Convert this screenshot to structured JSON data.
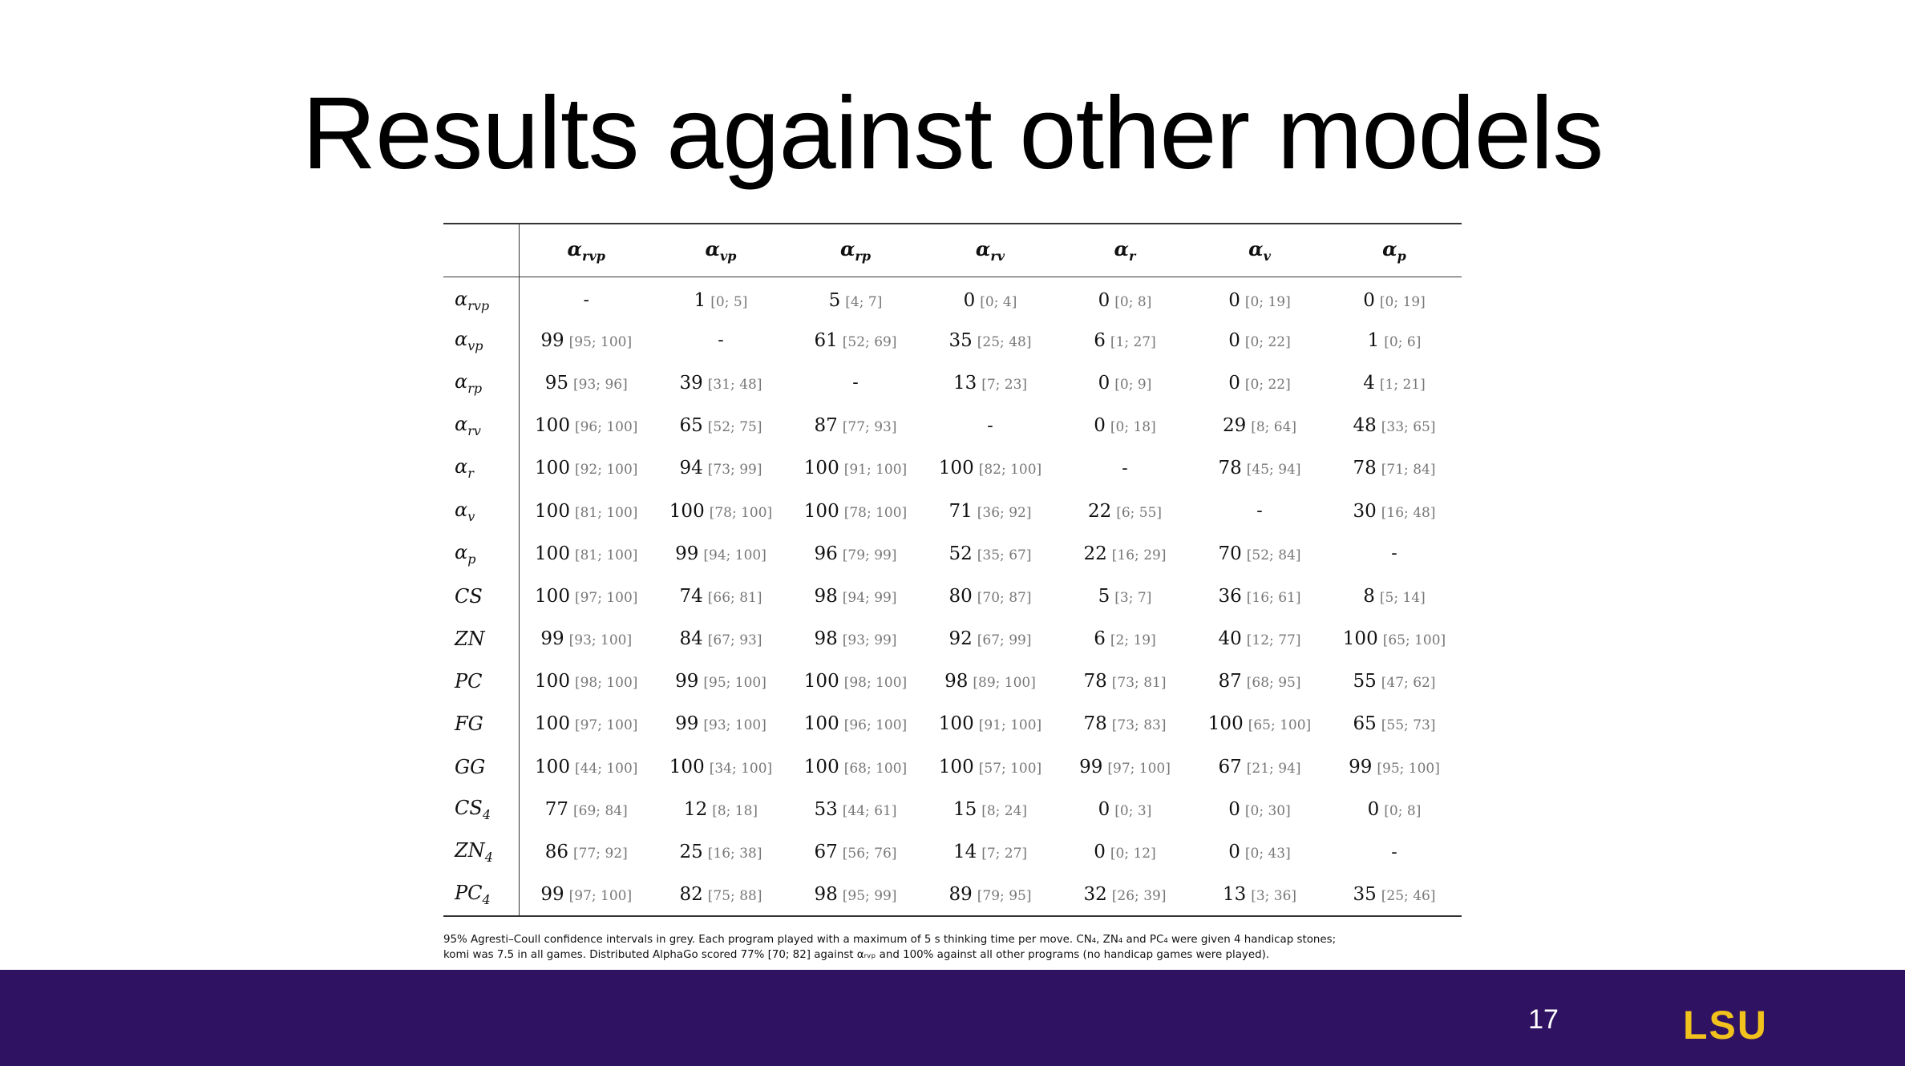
{
  "slide": {
    "title": "Results against other models",
    "page_number": "17",
    "logo_text": "LSU",
    "colors": {
      "footer_bar": "#301262",
      "logo_gold": "#F1C21C",
      "ci_grey": "#777777"
    }
  },
  "table": {
    "columns": [
      {
        "base": "α",
        "sub": "rvp"
      },
      {
        "base": "α",
        "sub": "vp"
      },
      {
        "base": "α",
        "sub": "rp"
      },
      {
        "base": "α",
        "sub": "rv"
      },
      {
        "base": "α",
        "sub": "r"
      },
      {
        "base": "α",
        "sub": "v"
      },
      {
        "base": "α",
        "sub": "p"
      }
    ],
    "rows": [
      {
        "label": {
          "base": "α",
          "sub": "rvp"
        },
        "cells": [
          {
            "v": "-",
            "ci": ""
          },
          {
            "v": "1",
            "ci": "[0; 5]"
          },
          {
            "v": "5",
            "ci": "[4; 7]"
          },
          {
            "v": "0",
            "ci": "[0; 4]"
          },
          {
            "v": "0",
            "ci": "[0; 8]"
          },
          {
            "v": "0",
            "ci": "[0; 19]"
          },
          {
            "v": "0",
            "ci": "[0; 19]"
          }
        ]
      },
      {
        "label": {
          "base": "α",
          "sub": "vp"
        },
        "cells": [
          {
            "v": "99",
            "ci": "[95; 100]"
          },
          {
            "v": "-",
            "ci": ""
          },
          {
            "v": "61",
            "ci": "[52; 69]"
          },
          {
            "v": "35",
            "ci": "[25; 48]"
          },
          {
            "v": "6",
            "ci": "[1; 27]"
          },
          {
            "v": "0",
            "ci": "[0; 22]"
          },
          {
            "v": "1",
            "ci": "[0; 6]"
          }
        ]
      },
      {
        "label": {
          "base": "α",
          "sub": "rp"
        },
        "cells": [
          {
            "v": "95",
            "ci": "[93; 96]"
          },
          {
            "v": "39",
            "ci": "[31; 48]"
          },
          {
            "v": "-",
            "ci": ""
          },
          {
            "v": "13",
            "ci": "[7; 23]"
          },
          {
            "v": "0",
            "ci": "[0; 9]"
          },
          {
            "v": "0",
            "ci": "[0; 22]"
          },
          {
            "v": "4",
            "ci": "[1; 21]"
          }
        ]
      },
      {
        "label": {
          "base": "α",
          "sub": "rv"
        },
        "cells": [
          {
            "v": "100",
            "ci": "[96; 100]"
          },
          {
            "v": "65",
            "ci": "[52; 75]"
          },
          {
            "v": "87",
            "ci": "[77; 93]"
          },
          {
            "v": "-",
            "ci": ""
          },
          {
            "v": "0",
            "ci": "[0; 18]"
          },
          {
            "v": "29",
            "ci": "[8; 64]"
          },
          {
            "v": "48",
            "ci": "[33; 65]"
          }
        ]
      },
      {
        "label": {
          "base": "α",
          "sub": "r"
        },
        "cells": [
          {
            "v": "100",
            "ci": "[92; 100]"
          },
          {
            "v": "94",
            "ci": "[73; 99]"
          },
          {
            "v": "100",
            "ci": "[91; 100]"
          },
          {
            "v": "100",
            "ci": "[82; 100]"
          },
          {
            "v": "-",
            "ci": ""
          },
          {
            "v": "78",
            "ci": "[45; 94]"
          },
          {
            "v": "78",
            "ci": "[71; 84]"
          }
        ]
      },
      {
        "label": {
          "base": "α",
          "sub": "v"
        },
        "cells": [
          {
            "v": "100",
            "ci": "[81; 100]"
          },
          {
            "v": "100",
            "ci": "[78; 100]"
          },
          {
            "v": "100",
            "ci": "[78; 100]"
          },
          {
            "v": "71",
            "ci": "[36; 92]"
          },
          {
            "v": "22",
            "ci": "[6; 55]"
          },
          {
            "v": "-",
            "ci": ""
          },
          {
            "v": "30",
            "ci": "[16; 48]"
          }
        ]
      },
      {
        "label": {
          "base": "α",
          "sub": "p"
        },
        "cells": [
          {
            "v": "100",
            "ci": "[81; 100]"
          },
          {
            "v": "99",
            "ci": "[94; 100]"
          },
          {
            "v": "96",
            "ci": "[79; 99]"
          },
          {
            "v": "52",
            "ci": "[35; 67]"
          },
          {
            "v": "22",
            "ci": "[16; 29]"
          },
          {
            "v": "70",
            "ci": "[52; 84]"
          },
          {
            "v": "-",
            "ci": ""
          }
        ]
      },
      {
        "label": {
          "base": "CS",
          "sub": ""
        },
        "cells": [
          {
            "v": "100",
            "ci": "[97; 100]"
          },
          {
            "v": "74",
            "ci": "[66; 81]"
          },
          {
            "v": "98",
            "ci": "[94; 99]"
          },
          {
            "v": "80",
            "ci": "[70; 87]"
          },
          {
            "v": "5",
            "ci": "[3; 7]"
          },
          {
            "v": "36",
            "ci": "[16; 61]"
          },
          {
            "v": "8",
            "ci": "[5; 14]"
          }
        ]
      },
      {
        "label": {
          "base": "ZN",
          "sub": ""
        },
        "cells": [
          {
            "v": "99",
            "ci": "[93; 100]"
          },
          {
            "v": "84",
            "ci": "[67; 93]"
          },
          {
            "v": "98",
            "ci": "[93; 99]"
          },
          {
            "v": "92",
            "ci": "[67; 99]"
          },
          {
            "v": "6",
            "ci": "[2; 19]"
          },
          {
            "v": "40",
            "ci": "[12; 77]"
          },
          {
            "v": "100",
            "ci": "[65; 100]"
          }
        ]
      },
      {
        "label": {
          "base": "PC",
          "sub": ""
        },
        "cells": [
          {
            "v": "100",
            "ci": "[98; 100]"
          },
          {
            "v": "99",
            "ci": "[95; 100]"
          },
          {
            "v": "100",
            "ci": "[98; 100]"
          },
          {
            "v": "98",
            "ci": "[89; 100]"
          },
          {
            "v": "78",
            "ci": "[73; 81]"
          },
          {
            "v": "87",
            "ci": "[68; 95]"
          },
          {
            "v": "55",
            "ci": "[47; 62]"
          }
        ]
      },
      {
        "label": {
          "base": "FG",
          "sub": ""
        },
        "cells": [
          {
            "v": "100",
            "ci": "[97; 100]"
          },
          {
            "v": "99",
            "ci": "[93; 100]"
          },
          {
            "v": "100",
            "ci": "[96; 100]"
          },
          {
            "v": "100",
            "ci": "[91; 100]"
          },
          {
            "v": "78",
            "ci": "[73; 83]"
          },
          {
            "v": "100",
            "ci": "[65; 100]"
          },
          {
            "v": "65",
            "ci": "[55; 73]"
          }
        ]
      },
      {
        "label": {
          "base": "GG",
          "sub": ""
        },
        "cells": [
          {
            "v": "100",
            "ci": "[44; 100]"
          },
          {
            "v": "100",
            "ci": "[34; 100]"
          },
          {
            "v": "100",
            "ci": "[68; 100]"
          },
          {
            "v": "100",
            "ci": "[57; 100]"
          },
          {
            "v": "99",
            "ci": "[97; 100]"
          },
          {
            "v": "67",
            "ci": "[21; 94]"
          },
          {
            "v": "99",
            "ci": "[95; 100]"
          }
        ]
      },
      {
        "label": {
          "base": "CS",
          "sub": "4"
        },
        "cells": [
          {
            "v": "77",
            "ci": "[69; 84]"
          },
          {
            "v": "12",
            "ci": "[8; 18]"
          },
          {
            "v": "53",
            "ci": "[44; 61]"
          },
          {
            "v": "15",
            "ci": "[8; 24]"
          },
          {
            "v": "0",
            "ci": "[0; 3]"
          },
          {
            "v": "0",
            "ci": "[0; 30]"
          },
          {
            "v": "0",
            "ci": "[0; 8]"
          }
        ]
      },
      {
        "label": {
          "base": "ZN",
          "sub": "4"
        },
        "cells": [
          {
            "v": "86",
            "ci": "[77; 92]"
          },
          {
            "v": "25",
            "ci": "[16; 38]"
          },
          {
            "v": "67",
            "ci": "[56; 76]"
          },
          {
            "v": "14",
            "ci": "[7; 27]"
          },
          {
            "v": "0",
            "ci": "[0; 12]"
          },
          {
            "v": "0",
            "ci": "[0; 43]"
          },
          {
            "v": "-",
            "ci": ""
          }
        ]
      },
      {
        "label": {
          "base": "PC",
          "sub": "4"
        },
        "cells": [
          {
            "v": "99",
            "ci": "[97; 100]"
          },
          {
            "v": "82",
            "ci": "[75; 88]"
          },
          {
            "v": "98",
            "ci": "[95; 99]"
          },
          {
            "v": "89",
            "ci": "[79; 95]"
          },
          {
            "v": "32",
            "ci": "[26; 39]"
          },
          {
            "v": "13",
            "ci": "[3; 36]"
          },
          {
            "v": "35",
            "ci": "[25; 46]"
          }
        ]
      }
    ]
  },
  "caption": {
    "line1": "95% Agresti–Coull confidence intervals in grey. Each program played with a maximum of 5 s thinking time per move. CN₄, ZN₄ and PC₄ were given 4 handicap stones;",
    "line2": "komi was 7.5 in all games. Distributed AlphaGo scored 77% [70; 82] against αᵣᵥₚ and 100% against all other programs (no handicap games were played)."
  }
}
